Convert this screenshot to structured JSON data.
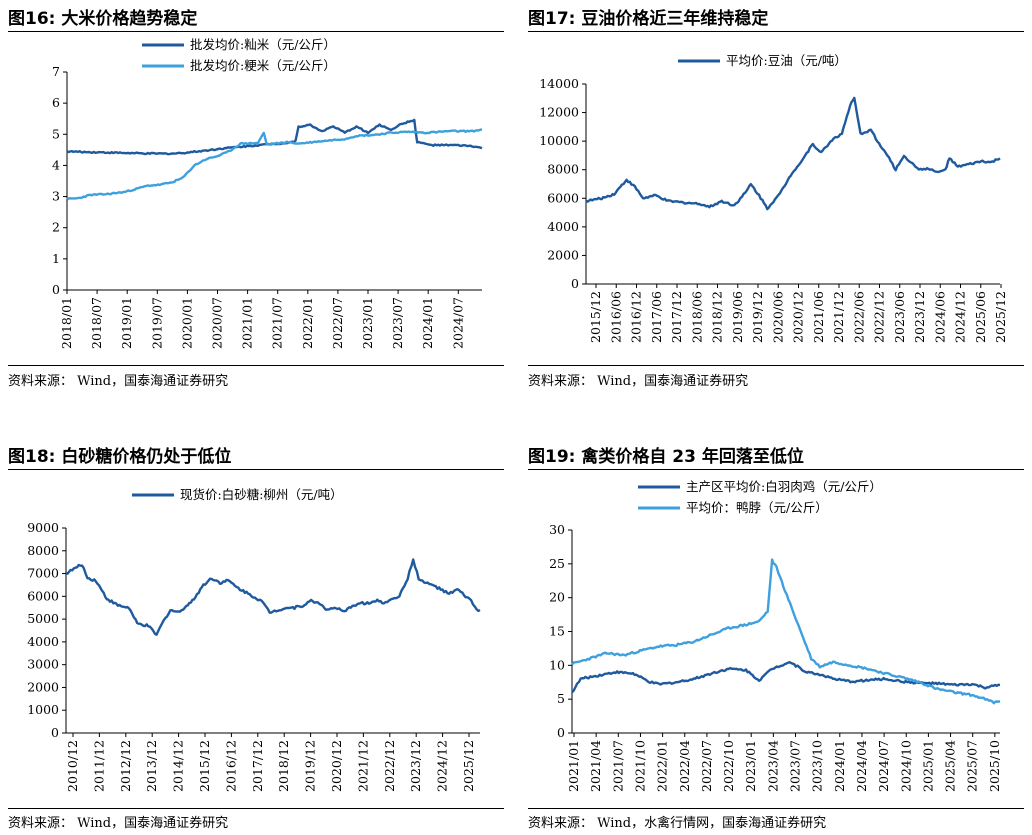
{
  "colors": {
    "dark": "#1f5a9e",
    "light": "#3ea0dc"
  },
  "fig16": {
    "title": "图16:  大米价格趋势稳定",
    "source": "资料来源： Wind，国泰海通证券研究",
    "chart_data": {
      "type": "line",
      "ylim": [
        0,
        7
      ],
      "yticks": [
        "0",
        "1",
        "2",
        "3",
        "4",
        "5",
        "6",
        "7"
      ],
      "xlim": [
        2018.0,
        2025.17
      ],
      "xticks": [
        "2018/01",
        "2018/07",
        "2019/01",
        "2019/07",
        "2020/01",
        "2020/07",
        "2021/01",
        "2021/07",
        "2022/01",
        "2022/07",
        "2023/01",
        "2023/07",
        "2024/01",
        "2024/07"
      ],
      "series": [
        {
          "name": "批发均价:籼米（元/公斤）",
          "color": "dark",
          "points": [
            [
              2018.0,
              4.45
            ],
            [
              2018.3,
              4.43
            ],
            [
              2018.6,
              4.42
            ],
            [
              2019.0,
              4.4
            ],
            [
              2019.4,
              4.38
            ],
            [
              2019.8,
              4.38
            ],
            [
              2020.0,
              4.4
            ],
            [
              2020.4,
              4.48
            ],
            [
              2020.7,
              4.55
            ],
            [
              2021.0,
              4.6
            ],
            [
              2021.3,
              4.65
            ],
            [
              2021.6,
              4.7
            ],
            [
              2021.8,
              4.72
            ],
            [
              2021.95,
              4.78
            ],
            [
              2022.0,
              5.25
            ],
            [
              2022.2,
              5.3
            ],
            [
              2022.4,
              5.1
            ],
            [
              2022.6,
              5.25
            ],
            [
              2022.8,
              5.05
            ],
            [
              2023.0,
              5.25
            ],
            [
              2023.2,
              5.05
            ],
            [
              2023.4,
              5.3
            ],
            [
              2023.6,
              5.15
            ],
            [
              2023.8,
              5.35
            ],
            [
              2024.0,
              5.45
            ],
            [
              2024.05,
              4.75
            ],
            [
              2024.3,
              4.65
            ],
            [
              2024.7,
              4.65
            ],
            [
              2025.0,
              4.62
            ],
            [
              2025.17,
              4.55
            ]
          ]
        },
        {
          "name": "批发均价:粳米（元/公斤）",
          "color": "light",
          "points": [
            [
              2018.0,
              2.92
            ],
            [
              2018.2,
              2.95
            ],
            [
              2018.4,
              3.05
            ],
            [
              2018.7,
              3.08
            ],
            [
              2019.0,
              3.15
            ],
            [
              2019.2,
              3.25
            ],
            [
              2019.4,
              3.35
            ],
            [
              2019.6,
              3.38
            ],
            [
              2019.8,
              3.45
            ],
            [
              2020.0,
              3.6
            ],
            [
              2020.2,
              4.0
            ],
            [
              2020.4,
              4.2
            ],
            [
              2020.6,
              4.3
            ],
            [
              2020.8,
              4.45
            ],
            [
              2021.0,
              4.7
            ],
            [
              2021.3,
              4.72
            ],
            [
              2021.4,
              5.05
            ],
            [
              2021.45,
              4.68
            ],
            [
              2021.6,
              4.7
            ],
            [
              2021.8,
              4.75
            ],
            [
              2022.0,
              4.7
            ],
            [
              2022.4,
              4.78
            ],
            [
              2022.8,
              4.85
            ],
            [
              2023.0,
              4.95
            ],
            [
              2023.3,
              4.98
            ],
            [
              2023.6,
              5.05
            ],
            [
              2023.9,
              5.08
            ],
            [
              2024.2,
              5.05
            ],
            [
              2024.6,
              5.1
            ],
            [
              2025.0,
              5.1
            ],
            [
              2025.17,
              5.15
            ]
          ]
        }
      ]
    }
  },
  "fig17": {
    "title": "图17:  豆油价格近三年维持稳定",
    "source": "资料来源： Wind，国泰海通证券研究",
    "chart_data": {
      "type": "line",
      "ylim": [
        0,
        14000
      ],
      "yticks": [
        "0",
        "2000",
        "4000",
        "6000",
        "8000",
        "10000",
        "12000",
        "14000"
      ],
      "xlim": [
        2015.92,
        2025.92
      ],
      "xticks": [
        "2015/12",
        "2016/06",
        "2016/12",
        "2017/06",
        "2017/12",
        "2018/06",
        "2018/12",
        "2019/06",
        "2019/12",
        "2020/06",
        "2020/12",
        "2021/06",
        "2021/12",
        "2022/06",
        "2022/12",
        "2023/06",
        "2023/12",
        "2024/06",
        "2024/12",
        "2025/06",
        "2025/12"
      ],
      "series": [
        {
          "name": "平均价:豆油（元/吨）",
          "color": "dark",
          "points": [
            [
              2015.92,
              5800
            ],
            [
              2016.3,
              6000
            ],
            [
              2016.6,
              6300
            ],
            [
              2016.9,
              7300
            ],
            [
              2017.1,
              6800
            ],
            [
              2017.3,
              6000
            ],
            [
              2017.6,
              6200
            ],
            [
              2017.9,
              5800
            ],
            [
              2018.3,
              5700
            ],
            [
              2018.7,
              5600
            ],
            [
              2018.9,
              5400
            ],
            [
              2019.2,
              5800
            ],
            [
              2019.5,
              5500
            ],
            [
              2019.8,
              6500
            ],
            [
              2019.9,
              7000
            ],
            [
              2020.1,
              6200
            ],
            [
              2020.3,
              5300
            ],
            [
              2020.6,
              6300
            ],
            [
              2020.9,
              7800
            ],
            [
              2021.1,
              8500
            ],
            [
              2021.4,
              9800
            ],
            [
              2021.6,
              9200
            ],
            [
              2021.9,
              10200
            ],
            [
              2022.1,
              10500
            ],
            [
              2022.3,
              12500
            ],
            [
              2022.4,
              13000
            ],
            [
              2022.55,
              10500
            ],
            [
              2022.8,
              10800
            ],
            [
              2023.0,
              9800
            ],
            [
              2023.2,
              9000
            ],
            [
              2023.4,
              8000
            ],
            [
              2023.6,
              9000
            ],
            [
              2023.8,
              8400
            ],
            [
              2024.0,
              8000
            ],
            [
              2024.2,
              8100
            ],
            [
              2024.4,
              7800
            ],
            [
              2024.6,
              8000
            ],
            [
              2024.7,
              8800
            ],
            [
              2024.9,
              8200
            ],
            [
              2025.2,
              8400
            ],
            [
              2025.5,
              8600
            ],
            [
              2025.7,
              8500
            ],
            [
              2025.92,
              8800
            ]
          ]
        }
      ]
    }
  },
  "fig18": {
    "title": "图18:  白砂糖价格仍处于低位",
    "source": "资料来源： Wind，国泰海通证券研究",
    "chart_data": {
      "type": "line",
      "ylim": [
        0,
        9000
      ],
      "yticks": [
        "0",
        "1000",
        "2000",
        "3000",
        "4000",
        "5000",
        "6000",
        "7000",
        "8000",
        "9000"
      ],
      "xlim": [
        2010.92,
        2025.92
      ],
      "xticks": [
        "2010/12",
        "2011/12",
        "2012/12",
        "2013/12",
        "2014/12",
        "2015/12",
        "2016/12",
        "2017/12",
        "2018/12",
        "2019/12",
        "2020/12",
        "2021/12",
        "2022/12",
        "2023/12",
        "2024/12",
        "2025/12"
      ],
      "series": [
        {
          "name": "现货价:白砂糖:柳州（元/吨）",
          "color": "dark",
          "points": [
            [
              2010.92,
              7000
            ],
            [
              2011.2,
              7200
            ],
            [
              2011.5,
              7400
            ],
            [
              2011.7,
              6800
            ],
            [
              2012.0,
              6700
            ],
            [
              2012.4,
              5900
            ],
            [
              2012.8,
              5600
            ],
            [
              2013.2,
              5500
            ],
            [
              2013.5,
              4800
            ],
            [
              2013.9,
              4700
            ],
            [
              2014.2,
              4300
            ],
            [
              2014.4,
              4800
            ],
            [
              2014.7,
              5400
            ],
            [
              2015.0,
              5300
            ],
            [
              2015.5,
              5800
            ],
            [
              2015.9,
              6500
            ],
            [
              2016.2,
              6800
            ],
            [
              2016.5,
              6600
            ],
            [
              2016.8,
              6700
            ],
            [
              2017.1,
              6400
            ],
            [
              2017.4,
              6200
            ],
            [
              2017.7,
              6000
            ],
            [
              2018.0,
              5800
            ],
            [
              2018.3,
              5300
            ],
            [
              2018.6,
              5400
            ],
            [
              2018.9,
              5500
            ],
            [
              2019.2,
              5500
            ],
            [
              2019.5,
              5600
            ],
            [
              2019.8,
              5800
            ],
            [
              2020.1,
              5700
            ],
            [
              2020.4,
              5400
            ],
            [
              2020.7,
              5500
            ],
            [
              2021.0,
              5300
            ],
            [
              2021.3,
              5600
            ],
            [
              2021.6,
              5700
            ],
            [
              2021.9,
              5700
            ],
            [
              2022.2,
              5800
            ],
            [
              2022.5,
              5700
            ],
            [
              2022.7,
              5900
            ],
            [
              2023.0,
              6000
            ],
            [
              2023.3,
              6800
            ],
            [
              2023.5,
              7600
            ],
            [
              2023.7,
              6800
            ],
            [
              2023.9,
              6600
            ],
            [
              2024.2,
              6500
            ],
            [
              2024.5,
              6300
            ],
            [
              2024.8,
              6100
            ],
            [
              2025.1,
              6300
            ],
            [
              2025.4,
              6000
            ],
            [
              2025.6,
              5800
            ],
            [
              2025.8,
              5400
            ],
            [
              2025.92,
              5400
            ]
          ]
        }
      ]
    }
  },
  "fig19": {
    "title": "图19:  禽类价格自 23 年回落至低位",
    "source": "资料来源： Wind，水禽行情网，国泰海通证券研究",
    "chart_data": {
      "type": "line",
      "ylim": [
        0,
        30
      ],
      "yticks": [
        "0",
        "5",
        "10",
        "15",
        "20",
        "25",
        "30"
      ],
      "xlim": [
        2021.0,
        2025.92
      ],
      "xticks": [
        "2021/01",
        "2021/04",
        "2021/07",
        "2021/10",
        "2022/01",
        "2022/04",
        "2022/07",
        "2022/10",
        "2023/01",
        "2023/04",
        "2023/07",
        "2023/10",
        "2024/01",
        "2024/04",
        "2024/07",
        "2024/10",
        "2025/01",
        "2025/04",
        "2025/07",
        "2025/10"
      ],
      "series": [
        {
          "name": "主产区平均价:白羽肉鸡（元/公斤）",
          "color": "dark",
          "points": [
            [
              2021.0,
              6.0
            ],
            [
              2021.1,
              8.0
            ],
            [
              2021.3,
              8.5
            ],
            [
              2021.5,
              9.0
            ],
            [
              2021.7,
              8.8
            ],
            [
              2021.9,
              7.5
            ],
            [
              2022.0,
              7.2
            ],
            [
              2022.2,
              7.5
            ],
            [
              2022.4,
              8.0
            ],
            [
              2022.6,
              8.8
            ],
            [
              2022.8,
              9.5
            ],
            [
              2023.0,
              9.3
            ],
            [
              2023.15,
              7.8
            ],
            [
              2023.3,
              9.5
            ],
            [
              2023.5,
              10.5
            ],
            [
              2023.7,
              9.0
            ],
            [
              2023.9,
              8.5
            ],
            [
              2024.0,
              8.0
            ],
            [
              2024.2,
              7.6
            ],
            [
              2024.4,
              7.8
            ],
            [
              2024.6,
              8.0
            ],
            [
              2024.8,
              7.6
            ],
            [
              2025.0,
              7.4
            ],
            [
              2025.2,
              7.3
            ],
            [
              2025.4,
              7.1
            ],
            [
              2025.6,
              7.2
            ],
            [
              2025.75,
              6.7
            ],
            [
              2025.92,
              7.1
            ]
          ]
        },
        {
          "name": "平均价：鸭脖（元/公斤）",
          "color": "light",
          "points": [
            [
              2021.0,
              10.2
            ],
            [
              2021.2,
              11.0
            ],
            [
              2021.4,
              11.8
            ],
            [
              2021.6,
              11.5
            ],
            [
              2021.8,
              12.2
            ],
            [
              2022.0,
              12.8
            ],
            [
              2022.2,
              13.0
            ],
            [
              2022.4,
              13.5
            ],
            [
              2022.6,
              14.5
            ],
            [
              2022.8,
              15.5
            ],
            [
              2023.0,
              16.0
            ],
            [
              2023.15,
              16.5
            ],
            [
              2023.25,
              18.0
            ],
            [
              2023.3,
              25.5
            ],
            [
              2023.35,
              24.5
            ],
            [
              2023.45,
              21.0
            ],
            [
              2023.6,
              16.0
            ],
            [
              2023.75,
              11.0
            ],
            [
              2023.85,
              9.8
            ],
            [
              2024.0,
              10.5
            ],
            [
              2024.2,
              10.0
            ],
            [
              2024.4,
              9.5
            ],
            [
              2024.6,
              8.8
            ],
            [
              2024.8,
              8.2
            ],
            [
              2025.0,
              7.5
            ],
            [
              2025.2,
              6.5
            ],
            [
              2025.4,
              6.0
            ],
            [
              2025.6,
              5.6
            ],
            [
              2025.75,
              5.0
            ],
            [
              2025.85,
              4.5
            ],
            [
              2025.92,
              4.7
            ]
          ]
        }
      ]
    }
  }
}
